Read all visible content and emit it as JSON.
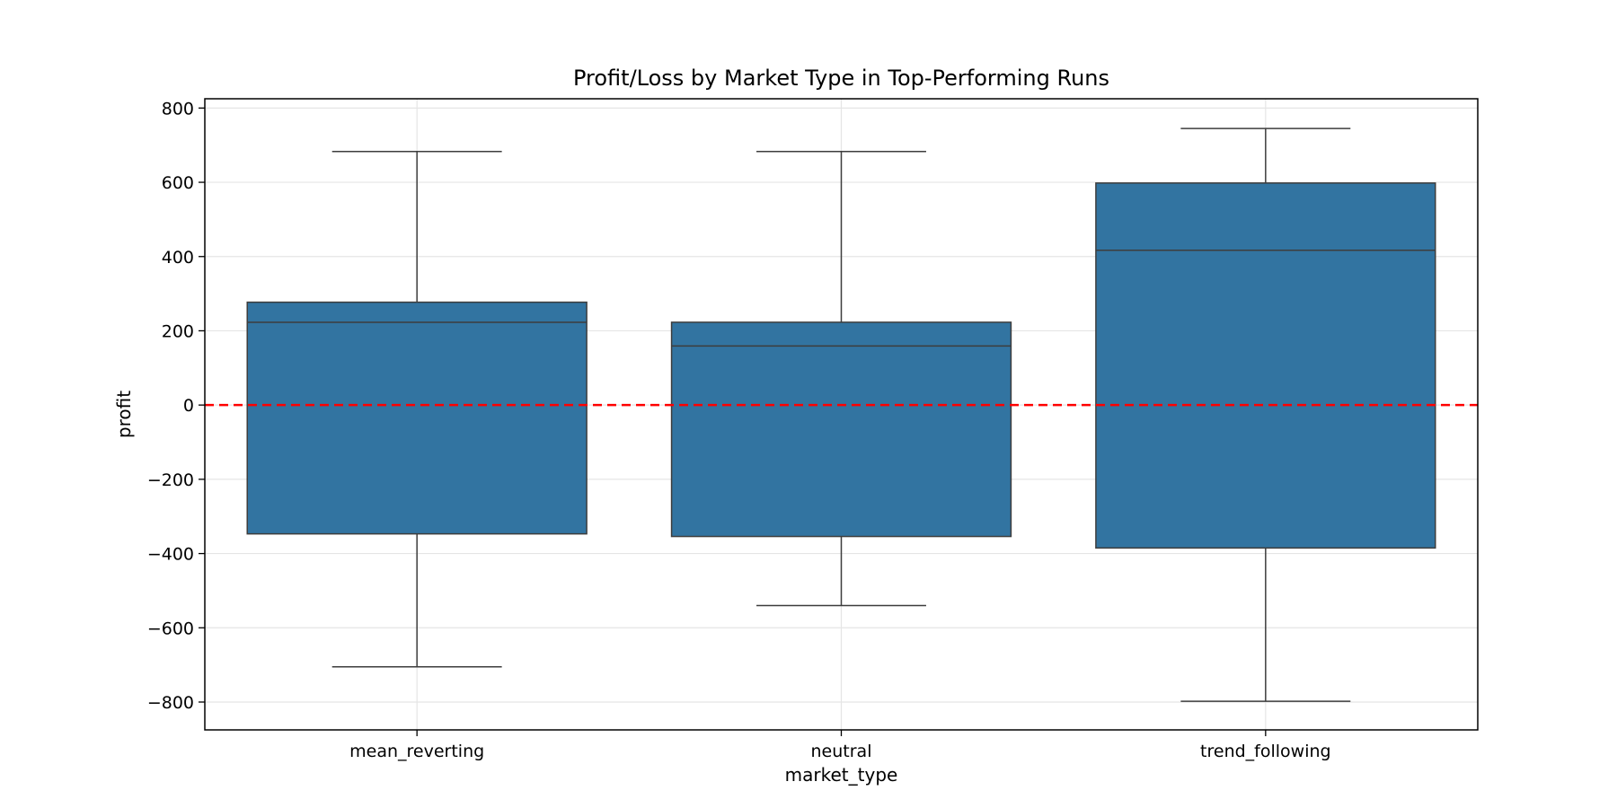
{
  "chart_data": {
    "type": "box",
    "title": "Profit/Loss by Market Type in Top-Performing Runs",
    "xlabel": "market_type",
    "ylabel": "profit",
    "categories": [
      "mean_reverting",
      "neutral",
      "trend_following"
    ],
    "boxes": [
      {
        "category": "mean_reverting",
        "whisker_low": -705,
        "q1": -347,
        "median": 223,
        "q3": 277,
        "whisker_high": 683
      },
      {
        "category": "neutral",
        "whisker_low": -540,
        "q1": -354,
        "median": 159,
        "q3": 223,
        "whisker_high": 683
      },
      {
        "category": "trend_following",
        "whisker_low": -798,
        "q1": -385,
        "median": 417,
        "q3": 598,
        "whisker_high": 745
      }
    ],
    "ylim": [
      -875,
      825
    ],
    "yticks": [
      -800,
      -600,
      -400,
      -200,
      0,
      200,
      400,
      600,
      800
    ],
    "reference_line": {
      "y": 0,
      "style": "dashed",
      "color": "#ff0000"
    },
    "grid": true,
    "box_color": "#3274a1",
    "line_color": "#3d3d3d",
    "grid_color": "#e5e5e5"
  }
}
